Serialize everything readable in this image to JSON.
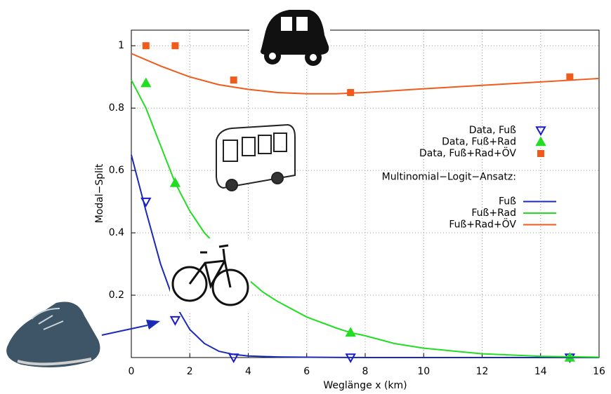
{
  "chart_data": {
    "type": "line",
    "xlabel": "Weglänge x (km)",
    "ylabel": "Modal−Split",
    "xlim": [
      0,
      16
    ],
    "ylim": [
      0,
      1.05
    ],
    "xticks": [
      0,
      2,
      4,
      6,
      8,
      10,
      12,
      14,
      16
    ],
    "yticks": [
      0.2,
      0.4,
      0.6,
      0.8,
      1
    ],
    "grid": true,
    "legend_title": "Multinomial−Logit−Ansatz:",
    "series": [
      {
        "name": "Data, Fuß",
        "color": "#1a1acc",
        "style": "points",
        "marker": "triangle-down",
        "x": [
          0.5,
          1.5,
          3.5,
          7.5,
          15
        ],
        "values": [
          0.5,
          0.12,
          0.0,
          0.0,
          0.0
        ]
      },
      {
        "name": "Data, Fuß+Rad",
        "color": "#22dd22",
        "style": "points",
        "marker": "triangle-up",
        "x": [
          0.5,
          1.5,
          7.5,
          15
        ],
        "values": [
          0.88,
          0.56,
          0.08,
          0.0
        ]
      },
      {
        "name": "Data, Fuß+Rad+ÖV",
        "color": "#f05a1a",
        "style": "points",
        "marker": "square",
        "x": [
          0.5,
          1.5,
          3.5,
          7.5,
          15
        ],
        "values": [
          1.0,
          1.0,
          0.89,
          0.85,
          0.9
        ]
      },
      {
        "name": "Fuß",
        "color": "#1a2ab8",
        "style": "line",
        "x": [
          0,
          0.5,
          1,
          1.5,
          2,
          2.5,
          3,
          3.5,
          4,
          5,
          6,
          8,
          10,
          16
        ],
        "values": [
          0.65,
          0.47,
          0.3,
          0.17,
          0.09,
          0.045,
          0.02,
          0.01,
          0.005,
          0.002,
          0.001,
          0,
          0,
          0
        ]
      },
      {
        "name": "Fuß+Rad",
        "color": "#22dd22",
        "style": "line",
        "x": [
          0,
          0.5,
          1,
          1.5,
          2,
          2.5,
          3,
          3.5,
          4,
          4.5,
          5,
          6,
          7,
          7.5,
          8,
          9,
          10,
          12,
          14,
          16
        ],
        "values": [
          0.89,
          0.8,
          0.68,
          0.56,
          0.47,
          0.4,
          0.35,
          0.3,
          0.25,
          0.21,
          0.18,
          0.13,
          0.095,
          0.08,
          0.07,
          0.045,
          0.03,
          0.012,
          0.004,
          0.001
        ]
      },
      {
        "name": "Fuß+Rad+ÖV",
        "color": "#f05a1a",
        "style": "line",
        "x": [
          0,
          1,
          2,
          3,
          4,
          5,
          6,
          7,
          8,
          10,
          12,
          14,
          16
        ],
        "values": [
          0.975,
          0.935,
          0.9,
          0.875,
          0.86,
          0.85,
          0.846,
          0.846,
          0.85,
          0.862,
          0.873,
          0.884,
          0.895
        ]
      }
    ]
  }
}
